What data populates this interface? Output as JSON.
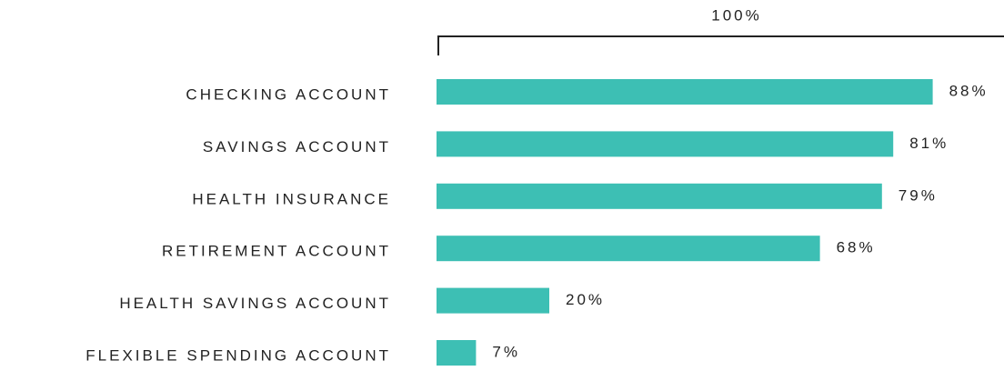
{
  "chart_data": {
    "type": "bar",
    "orientation": "horizontal",
    "categories": [
      "CHECKING ACCOUNT",
      "SAVINGS ACCOUNT",
      "HEALTH INSURANCE",
      "RETIREMENT ACCOUNT",
      "HEALTH SAVINGS ACCOUNT",
      "FLEXIBLE SPENDING ACCOUNT"
    ],
    "values": [
      88,
      81,
      79,
      68,
      20,
      7
    ],
    "value_labels": [
      "88%",
      "81%",
      "79%",
      "68%",
      "20%",
      "7%"
    ],
    "color": "#3dbfb4",
    "xlim": [
      0,
      100
    ],
    "xticks": [
      {
        "value": 100,
        "label": "100%"
      }
    ]
  }
}
